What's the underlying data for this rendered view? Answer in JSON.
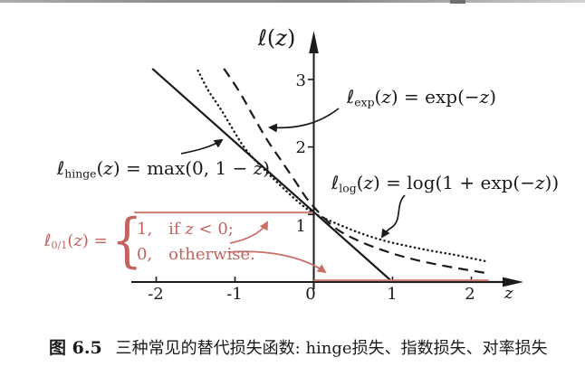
{
  "figure": {
    "formulas": {
      "ylabel": [
        {
          "t": "ℓ",
          "s": "i"
        },
        {
          "t": "(",
          "s": "r"
        },
        {
          "t": "z",
          "s": "i"
        },
        {
          "t": ")",
          "s": "r"
        }
      ],
      "exp": [
        {
          "t": "ℓ",
          "s": "i"
        },
        {
          "t": "exp",
          "s": "sub"
        },
        {
          "t": "(",
          "s": "r"
        },
        {
          "t": "z",
          "s": "i"
        },
        {
          "t": ") = exp(−",
          "s": "r"
        },
        {
          "t": "z",
          "s": "i"
        },
        {
          "t": ")",
          "s": "r"
        }
      ],
      "hinge": [
        {
          "t": "ℓ",
          "s": "i"
        },
        {
          "t": "hinge",
          "s": "sub"
        },
        {
          "t": "(",
          "s": "r"
        },
        {
          "t": "z",
          "s": "i"
        },
        {
          "t": ") = max(0, 1 − ",
          "s": "r"
        },
        {
          "t": "z",
          "s": "i"
        },
        {
          "t": ")",
          "s": "r"
        }
      ],
      "log": [
        {
          "t": "ℓ",
          "s": "i"
        },
        {
          "t": "log",
          "s": "sub"
        },
        {
          "t": "(",
          "s": "r"
        },
        {
          "t": "z",
          "s": "i"
        },
        {
          "t": ") = log(1 + exp(−",
          "s": "r"
        },
        {
          "t": "z",
          "s": "i"
        },
        {
          "t": "))",
          "s": "r"
        }
      ],
      "zero_one_head": [
        {
          "t": "ℓ",
          "s": "i"
        },
        {
          "t": "0/1",
          "s": "sub"
        },
        {
          "t": "(",
          "s": "r"
        },
        {
          "t": "z",
          "s": "i"
        },
        {
          "t": ") =",
          "s": "r"
        }
      ],
      "zero_one_cases": [
        [
          {
            "t": "1,  if ",
            "s": "r"
          },
          {
            "t": "z",
            "s": "i"
          },
          {
            "t": " < 0;",
            "s": "r"
          }
        ],
        [
          {
            "t": "0,  otherwise.",
            "s": "r"
          }
        ]
      ],
      "brace": "{"
    },
    "arrows": [
      {
        "name": "arrow-to-exp-curve",
        "color": "#1b1b1b"
      },
      {
        "name": "arrow-to-hinge-curve",
        "color": "#1b1b1b"
      },
      {
        "name": "arrow-to-log-curve",
        "color": "#1b1b1b"
      },
      {
        "name": "arrow-to-zero-one-upper-line",
        "color": "#c96f68"
      },
      {
        "name": "arrow-to-zero-one-lower-line",
        "color": "#c96f68"
      }
    ],
    "caption": {
      "tag": "图 6.5",
      "text": "三种常见的替代损失函数: hinge损失、指数损失、对率损失"
    }
  },
  "chart_data": {
    "type": "line",
    "title": "",
    "xlabel": "z",
    "ylabel": "ℓ(z)",
    "xlim": [
      -2.4,
      2.65
    ],
    "ylim": [
      0,
      3.6
    ],
    "xticks": [
      -2,
      -1,
      0,
      1,
      2
    ],
    "yticks": [
      1,
      2,
      3
    ],
    "xticklabels": [
      "-2",
      "-1",
      "0",
      "1",
      "2"
    ],
    "yticklabels": [
      "1",
      "2",
      "3"
    ],
    "grid": false,
    "legend": "none (curves labeled with arrows)",
    "series": [
      {
        "name": "hinge-loss",
        "label": "ℓ_hinge(z) = max(0, 1 − z)",
        "style": "solid",
        "color": "#1b1b1b",
        "smooth": false,
        "points": [
          [
            -2.05,
            3.16
          ],
          [
            1.0,
            0.0
          ],
          [
            2.6,
            0.0
          ]
        ]
      },
      {
        "name": "exponential-loss",
        "label": "ℓ_exp(z) = exp(−z)",
        "style": "dashed",
        "color": "#1b1b1b",
        "smooth": true,
        "points": [
          [
            -1.14,
            3.16
          ],
          [
            -0.94,
            2.81
          ],
          [
            -0.77,
            2.46
          ],
          [
            -0.59,
            2.1
          ],
          [
            -0.42,
            1.81
          ],
          [
            -0.24,
            1.5
          ],
          [
            -0.05,
            1.18
          ],
          [
            0.25,
            0.82
          ],
          [
            0.55,
            0.62
          ],
          [
            0.9,
            0.46
          ],
          [
            1.25,
            0.34
          ],
          [
            1.65,
            0.24
          ],
          [
            2.2,
            0.13
          ]
        ]
      },
      {
        "name": "logistic-loss",
        "label": "ℓ_log(z) = log(1 + exp(−z))",
        "style": "dotted",
        "color": "#1b1b1b",
        "smooth": true,
        "points": [
          [
            -1.47,
            3.13
          ],
          [
            -1.34,
            2.84
          ],
          [
            -1.17,
            2.54
          ],
          [
            -0.88,
            1.99
          ],
          [
            -0.63,
            1.67
          ],
          [
            -0.46,
            1.47
          ],
          [
            -0.19,
            1.18
          ],
          [
            0.0,
            1.02
          ],
          [
            0.3,
            0.86
          ],
          [
            0.6,
            0.72
          ],
          [
            0.9,
            0.61
          ],
          [
            1.2,
            0.53
          ],
          [
            1.5,
            0.46
          ],
          [
            1.8,
            0.4
          ],
          [
            2.17,
            0.31
          ]
        ]
      },
      {
        "name": "zero-one-loss-negative",
        "label": "ℓ_0/1(z) = 1, if z < 0",
        "style": "solid",
        "color": "#cb7b72",
        "smooth": false,
        "points": [
          [
            -2.28,
            1.03
          ],
          [
            -0.01,
            1.03
          ]
        ]
      },
      {
        "name": "zero-one-loss-nonnegative",
        "label": "ℓ_0/1(z) = 0, otherwise",
        "style": "solid",
        "color": "#cb7b72",
        "smooth": false,
        "points": [
          [
            0.0,
            0.025
          ],
          [
            2.22,
            0.025
          ]
        ]
      }
    ]
  },
  "colors": {
    "ink": "#1b1b1b",
    "red_text": "#c2635e",
    "red_line": "#cb7b72",
    "scan_bar": "#9a9a9a",
    "background": "#ffffff"
  }
}
